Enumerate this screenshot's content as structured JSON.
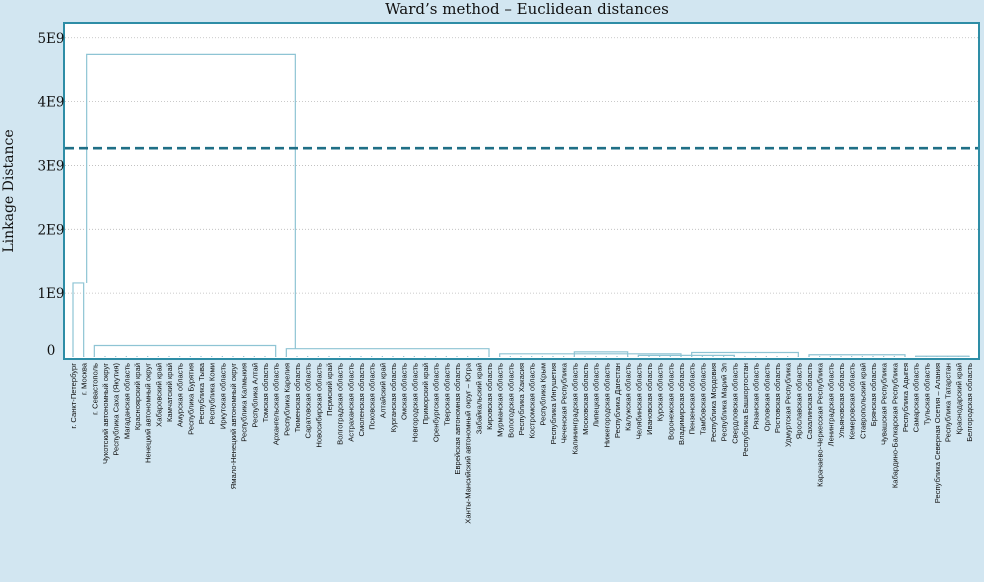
{
  "chart_data": {
    "type": "dendrogram",
    "title": "Ward’s method – Euclidean distances",
    "ylabel": "Linkage Distance",
    "xlabel": "",
    "yticks": [
      "0",
      "1E9",
      "2E9",
      "3E9",
      "4E9",
      "5E9"
    ],
    "ylim": [
      0,
      5200000000
    ],
    "grid": "horizontal dotted",
    "cut_line": 3270000000,
    "colors": {
      "background": "#d2e6f1",
      "plot": "#ffffff",
      "frame": "#2e8da6",
      "links": "#8ec4d4",
      "cut": "#1f6f86"
    },
    "leaves": [
      "г. Санкт-Петербург",
      "г. Москва",
      "г. Севастополь",
      "Чукотский автономный округ",
      "Республика Саха (Якутия)",
      "Магаданская область",
      "Красноярский край",
      "Ненецкий автономный округ",
      "Хабаровский край",
      "Камчатский край",
      "Амурская область",
      "Республика Бурятия",
      "Республика Тыва",
      "Республика Коми",
      "Иркутская область",
      "Ямало-Ненецкий автономный округ",
      "Республика Калмыкия",
      "Республика Алтай",
      "Томская область",
      "Архангельская область",
      "Республика Карелия",
      "Тюменская область",
      "Саратовская область",
      "Новосибирская область",
      "Пермский край",
      "Волгоградская область",
      "Астраханская область",
      "Смоленская область",
      "Псковская область",
      "Алтайский край",
      "Курганская область",
      "Омская область",
      "Новгородская область",
      "Приморский край",
      "Оренбургская область",
      "Тверская область",
      "Еврейская автономная область",
      "Ханты-Мансийский автономный округ – Югра",
      "Забайкальский край",
      "Кировская область",
      "Мурманская область",
      "Вологодская область",
      "Республика Хакасия",
      "Костромская область",
      "Республика Крым",
      "Республика Ингушетия",
      "Чеченская Республика",
      "Калининградская область",
      "Московская область",
      "Липецкая область",
      "Нижегородская область",
      "Республика Дагестан",
      "Калужская область",
      "Челябинская область",
      "Ивановская область",
      "Курская область",
      "Воронежская область",
      "Владимирская область",
      "Пензенская область",
      "Тамбовская область",
      "Республика Мордовия",
      "Республика Марий Эл",
      "Свердловская область",
      "Республика Башкортостан",
      "Рязанская область",
      "Орловская область",
      "Ростовская область",
      "Удмуртская Республика",
      "Ярославская область",
      "Сахалинская область",
      "Карачаево-Черкесская Республика",
      "Ленинградская область",
      "Ульяновская область",
      "Кемеровская область",
      "Ставропольский край",
      "Брянская область",
      "Чувашская Республика",
      "Кабардино-Балкарская Республика",
      "Республика Адыгея",
      "Самарская область",
      "Тульская область",
      "Республика Северная Осетия – Алания",
      "Республика Татарстан",
      "Краснодарский край",
      "Белгородская область"
    ],
    "merges": [
      {
        "a": 0,
        "b": 1,
        "height": 1160000000
      },
      {
        "span": [
          2,
          19
        ],
        "height": 180000000
      },
      {
        "span": [
          20,
          39
        ],
        "height": 130000000
      },
      {
        "span": [
          40,
          57
        ],
        "height": 50000000
      },
      {
        "span": [
          47,
          52
        ],
        "height": 80000000
      },
      {
        "span": [
          53,
          62
        ],
        "height": 25000000
      },
      {
        "span": [
          58,
          68
        ],
        "height": 70000000
      },
      {
        "span": [
          69,
          78
        ],
        "height": 35000000
      },
      {
        "span": [
          79,
          84
        ],
        "height": 12000000
      },
      {
        "span": [
          2,
          84
        ],
        "height": 4740000000
      },
      {
        "between": [
          [
            0,
            1
          ],
          [
            2,
            84
          ]
        ],
        "height": 4740000000
      }
    ]
  }
}
